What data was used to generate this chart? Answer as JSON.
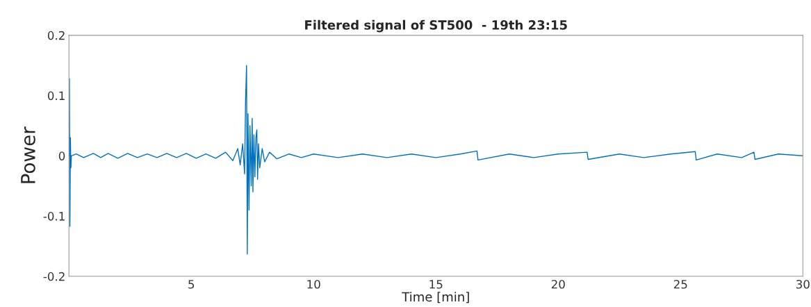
{
  "chart_data": {
    "type": "line",
    "title": "Filtered signal of ST500  - 19th 23:15",
    "xlabel": "Time [min]",
    "ylabel": "Power",
    "color": "#0072bd",
    "x": [
      0,
      0.02,
      0.04,
      0.06,
      0.08,
      0.1,
      0.3,
      0.6,
      1.0,
      1.3,
      1.6,
      2.0,
      2.4,
      2.8,
      3.2,
      3.6,
      4.0,
      4.4,
      4.8,
      5.2,
      5.6,
      6.0,
      6.4,
      6.7,
      6.9,
      7.0,
      7.1,
      7.18,
      7.22,
      7.26,
      7.29,
      7.32,
      7.36,
      7.4,
      7.45,
      7.49,
      7.52,
      7.56,
      7.6,
      7.64,
      7.68,
      7.71,
      7.75,
      7.8,
      7.9,
      8.0,
      8.2,
      8.5,
      9.0,
      9.5,
      10.0,
      11.0,
      12.0,
      13.0,
      14.0,
      15.0,
      16.0,
      16.68,
      16.72,
      18.0,
      19.0,
      20.0,
      21.18,
      21.22,
      22.5,
      23.5,
      24.6,
      25.6,
      25.64,
      26.5,
      27.5,
      28.0,
      28.04,
      29.0,
      30.0
    ],
    "values": [
      0,
      0.128,
      -0.117,
      0.03,
      -0.02,
      0,
      0.003,
      -0.003,
      0.004,
      -0.003,
      0.004,
      -0.004,
      0.004,
      -0.003,
      0.003,
      -0.003,
      0.004,
      -0.003,
      0.004,
      -0.004,
      0.003,
      -0.004,
      0.006,
      -0.008,
      0.012,
      -0.015,
      0.02,
      -0.03,
      0.093,
      0.15,
      -0.163,
      0.07,
      -0.09,
      0.05,
      -0.05,
      0.062,
      -0.06,
      0.035,
      -0.035,
      0.03,
      0.043,
      -0.039,
      0.02,
      -0.02,
      0.012,
      -0.01,
      0.006,
      -0.005,
      0.003,
      -0.003,
      0.003,
      -0.003,
      0.003,
      -0.003,
      0.003,
      -0.003,
      0.003,
      0.008,
      -0.007,
      0.003,
      -0.003,
      0.003,
      0.006,
      -0.006,
      0.003,
      -0.003,
      0.003,
      0.007,
      -0.007,
      0.003,
      -0.003,
      0.006,
      -0.006,
      0.003,
      0
    ],
    "xlim": [
      0,
      30
    ],
    "xticks": [
      5,
      10,
      15,
      20,
      25,
      30
    ],
    "ylim": [
      -0.2,
      0.2
    ],
    "yticks": [
      -0.2,
      -0.1,
      0,
      0.1,
      0.2
    ],
    "grid": false,
    "legend": false
  }
}
